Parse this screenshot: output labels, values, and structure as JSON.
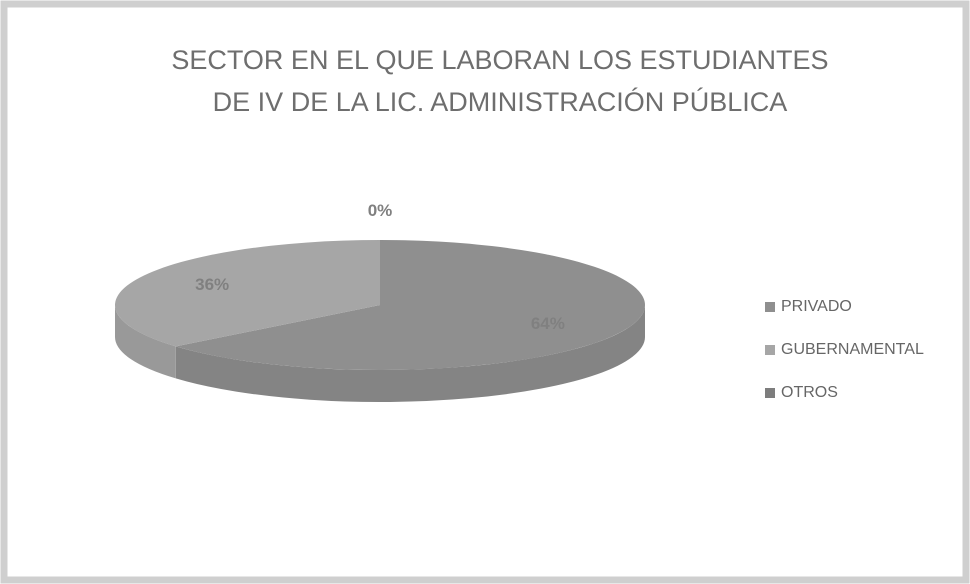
{
  "chart_data": {
    "type": "pie3d",
    "title": [
      "SECTOR EN EL QUE LABORAN LOS ESTUDIANTES",
      "DE IV DE LA LIC. ADMINISTRACIÓN PÚBLICA"
    ],
    "categories": [
      "PRIVADO",
      "GUBERNAMENTAL",
      "OTROS"
    ],
    "values": [
      64,
      36,
      0
    ],
    "value_labels": [
      "64%",
      "36%",
      "0%"
    ],
    "colors": [
      "#8f8f8f",
      "#a6a6a6",
      "#7d7d7d"
    ],
    "legend": "right"
  }
}
